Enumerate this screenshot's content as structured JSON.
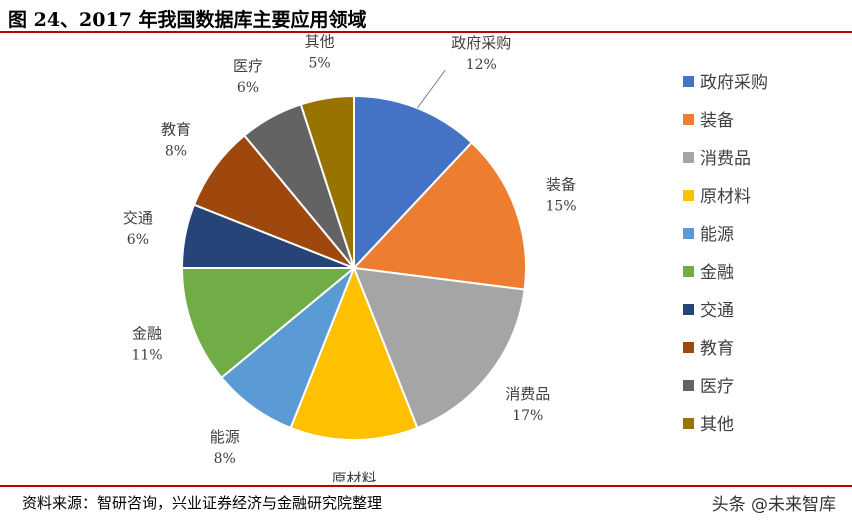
{
  "title": "图 24、2017 年我国数据库主要应用领域",
  "source": "资料来源：智研咨询，兴业证券经济与金融研究院整理",
  "watermark": "头条 @未来智库",
  "chart_data": {
    "type": "pie",
    "title": "",
    "unit": "%",
    "legend_position": "right",
    "start_angle": "12 o'clock, clockwise",
    "slices": [
      {
        "label": "政府采购",
        "value": 12,
        "value_label": "12%",
        "color": "#4472C4"
      },
      {
        "label": "装备",
        "value": 15,
        "value_label": "15%",
        "color": "#ED7D31"
      },
      {
        "label": "消费品",
        "value": 17,
        "value_label": "17%",
        "color": "#A5A5A5"
      },
      {
        "label": "原材料",
        "value": 12,
        "value_label": "12%",
        "color": "#FFC000"
      },
      {
        "label": "能源",
        "value": 8,
        "value_label": "8%",
        "color": "#5B9BD5"
      },
      {
        "label": "金融",
        "value": 11,
        "value_label": "11%",
        "color": "#70AD47"
      },
      {
        "label": "交通",
        "value": 6,
        "value_label": "6%",
        "color": "#264478"
      },
      {
        "label": "教育",
        "value": 8,
        "value_label": "8%",
        "color": "#9E480E"
      },
      {
        "label": "医疗",
        "value": 6,
        "value_label": "6%",
        "color": "#636363"
      },
      {
        "label": "其他",
        "value": 5,
        "value_label": "5%",
        "color": "#997300"
      }
    ]
  }
}
